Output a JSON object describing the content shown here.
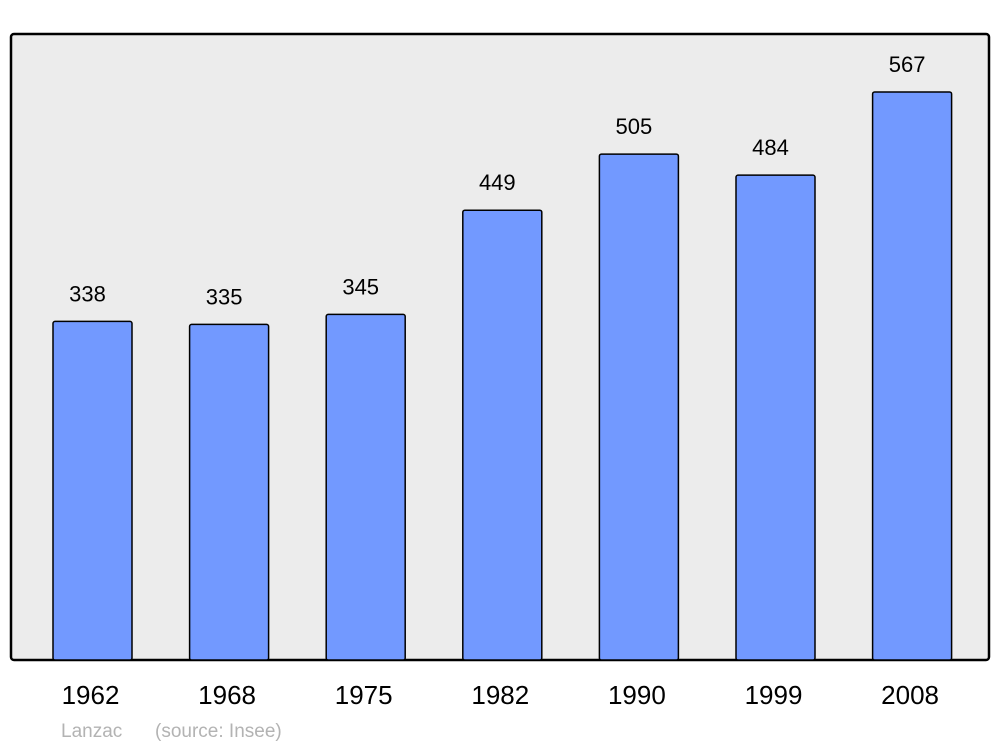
{
  "chart_data": {
    "type": "bar",
    "categories": [
      "1962",
      "1968",
      "1975",
      "1982",
      "1990",
      "1999",
      "2008"
    ],
    "values": [
      338,
      335,
      345,
      449,
      505,
      484,
      567
    ],
    "title": "",
    "xlabel": "",
    "ylabel": "",
    "ylim": [
      0,
      625
    ],
    "grid": false,
    "data_labels": true,
    "footer": {
      "place": "Lanzac",
      "source": "(source: Insee)"
    },
    "colors": {
      "bar": "#7299ff",
      "plot_background": "#ececec",
      "border": "#000000",
      "footer_text": "#b3b3b3"
    }
  }
}
